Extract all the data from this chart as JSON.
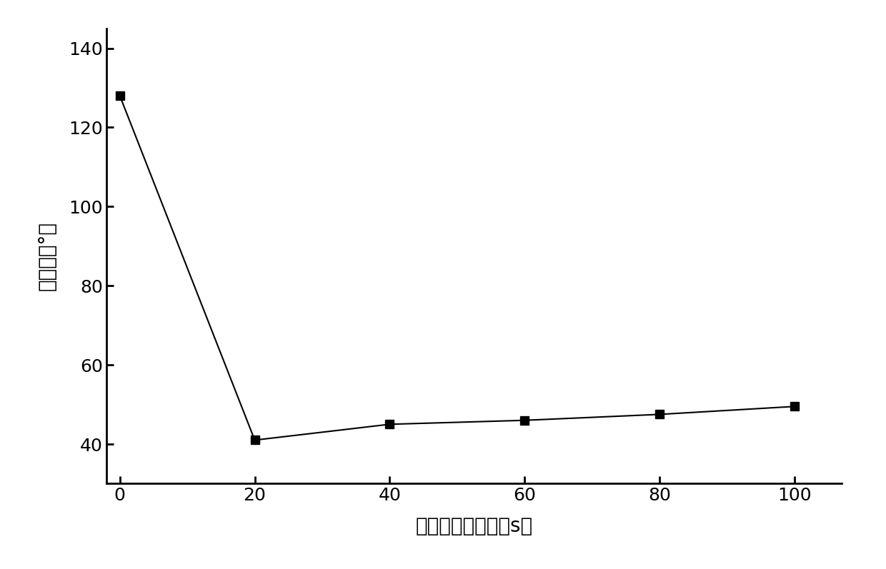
{
  "x": [
    0,
    20,
    40,
    60,
    80,
    100
  ],
  "y": [
    128,
    41,
    45,
    46,
    47.5,
    49.5
  ],
  "xlabel": "等离子处理时间（s）",
  "ylabel": "接触角（°）",
  "xlim": [
    -2,
    107
  ],
  "ylim": [
    30,
    145
  ],
  "yticks": [
    40,
    60,
    80,
    100,
    120,
    140
  ],
  "xticks": [
    0,
    20,
    40,
    60,
    80,
    100
  ],
  "marker": "s",
  "marker_size": 9,
  "line_color": "#000000",
  "marker_color": "#000000",
  "background_color": "#ffffff",
  "xlabel_fontsize": 20,
  "ylabel_fontsize": 20,
  "tick_fontsize": 18,
  "line_width": 1.5
}
